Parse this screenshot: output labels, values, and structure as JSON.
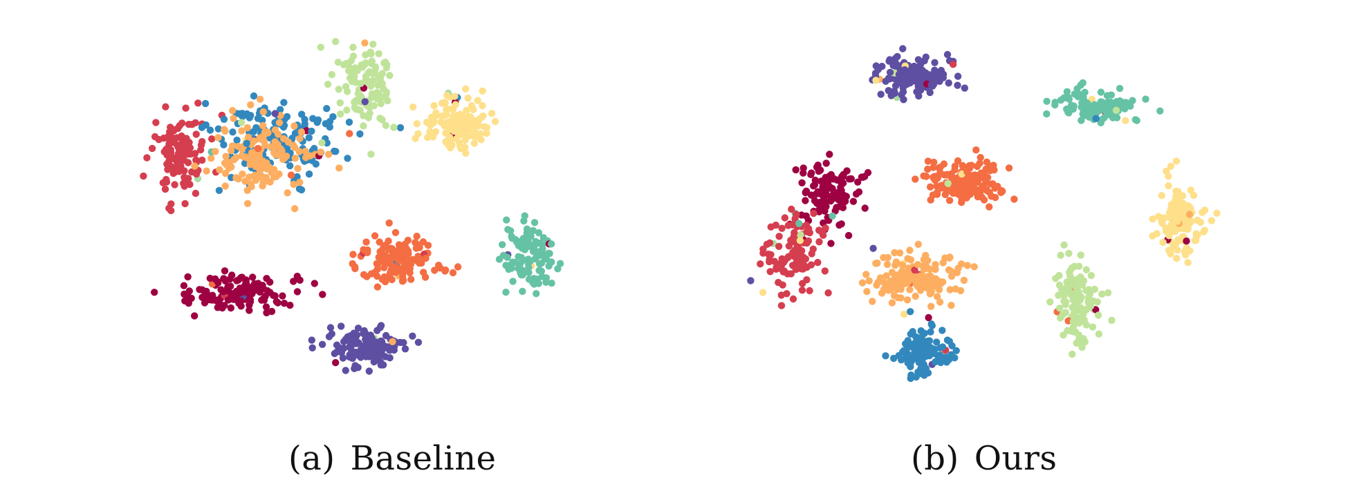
{
  "colors": {
    "c0": "#9e0142",
    "c1": "#d53e4f",
    "c2": "#f46d43",
    "c3": "#fdae61",
    "c4": "#fee08b",
    "c5": "#abdda4",
    "c6": "#66c2a5",
    "c7": "#3288bd",
    "c8": "#5e4fa2",
    "c9": "#c0e39a"
  },
  "chart_data": [
    {
      "type": "scatter",
      "title": "",
      "caption_tag": "(a)",
      "caption_label": "Baseline",
      "xlabel": "",
      "ylabel": "",
      "axes_visible": false,
      "grid": false,
      "legend": "none",
      "xlim": [
        0,
        100
      ],
      "ylim": [
        0,
        100
      ],
      "clusters": [
        {
          "color_key": "c1",
          "cx": 8,
          "cy": 35,
          "sx": 4.5,
          "sy": 11,
          "n": 120
        },
        {
          "color_key": "c7",
          "cx": 28,
          "cy": 30,
          "sx": 12,
          "sy": 9,
          "n": 150
        },
        {
          "color_key": "c3",
          "cx": 25,
          "cy": 35,
          "sx": 9,
          "sy": 10,
          "n": 150
        },
        {
          "color_key": "c0",
          "cx": 20,
          "cy": 73,
          "sx": 10,
          "sy": 5,
          "n": 130
        },
        {
          "color_key": "c9",
          "cx": 45,
          "cy": 15,
          "sx": 5,
          "sy": 10,
          "n": 110
        },
        {
          "color_key": "c4",
          "cx": 64,
          "cy": 26,
          "sx": 6,
          "sy": 7,
          "n": 140
        },
        {
          "color_key": "c2",
          "cx": 52,
          "cy": 64,
          "sx": 7,
          "sy": 6,
          "n": 140
        },
        {
          "color_key": "c6",
          "cx": 79,
          "cy": 63,
          "sx": 4.5,
          "sy": 8,
          "n": 110
        },
        {
          "color_key": "c8",
          "cx": 46,
          "cy": 88,
          "sx": 7,
          "sy": 5,
          "n": 140
        }
      ]
    },
    {
      "type": "scatter",
      "title": "",
      "caption_tag": "(b)",
      "caption_label": "Ours",
      "xlabel": "",
      "ylabel": "",
      "axes_visible": false,
      "grid": false,
      "legend": "none",
      "xlim": [
        0,
        100
      ],
      "ylim": [
        0,
        100
      ],
      "clusters": [
        {
          "color_key": "c8",
          "cx": 33,
          "cy": 12,
          "sx": 7,
          "sy": 5,
          "n": 140
        },
        {
          "color_key": "c6",
          "cx": 70,
          "cy": 21,
          "sx": 8,
          "sy": 4,
          "n": 120
        },
        {
          "color_key": "c2",
          "cx": 44,
          "cy": 42,
          "sx": 7,
          "sy": 6,
          "n": 150
        },
        {
          "color_key": "c0",
          "cx": 18,
          "cy": 45,
          "sx": 5,
          "sy": 9,
          "n": 120
        },
        {
          "color_key": "c1",
          "cx": 10,
          "cy": 62,
          "sx": 5,
          "sy": 10,
          "n": 110
        },
        {
          "color_key": "c3",
          "cx": 34,
          "cy": 68,
          "sx": 8,
          "sy": 7,
          "n": 150
        },
        {
          "color_key": "c7",
          "cx": 36,
          "cy": 89,
          "sx": 5,
          "sy": 6,
          "n": 130
        },
        {
          "color_key": "c4",
          "cx": 86,
          "cy": 52,
          "sx": 4.5,
          "sy": 9,
          "n": 130
        },
        {
          "color_key": "c9",
          "cx": 66,
          "cy": 74,
          "sx": 4,
          "sy": 11,
          "n": 110
        }
      ]
    }
  ]
}
